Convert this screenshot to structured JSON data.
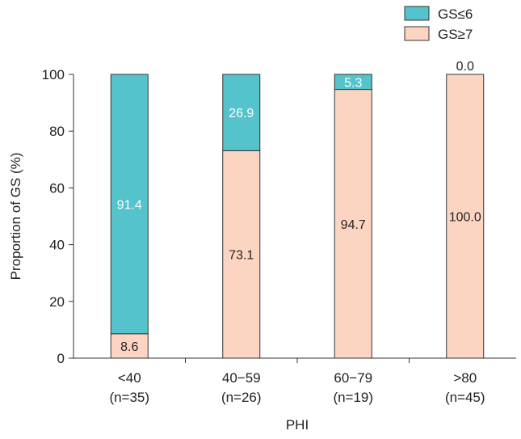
{
  "chart_data": {
    "type": "bar",
    "stacked": true,
    "categories": [
      "<40",
      "40−59",
      "60−79",
      ">80"
    ],
    "category_sublabels": [
      "(n=35)",
      "(n=26)",
      "(n=19)",
      "(n=45)"
    ],
    "series": [
      {
        "name": "GS≤6",
        "color": "#55c3cb",
        "values": [
          91.4,
          26.9,
          5.3,
          0.0
        ],
        "labels": [
          "91.4",
          "26.9",
          "5.3",
          "0.0"
        ],
        "label_color": "#ffffff"
      },
      {
        "name": "GS≥7",
        "color": "#fcd5c2",
        "values": [
          8.6,
          73.1,
          94.7,
          100.0
        ],
        "labels": [
          "8.6",
          "73.1",
          "94.7",
          "100.0"
        ],
        "label_color": "#222222"
      }
    ],
    "stack_order": [
      "GS≥7",
      "GS≤6"
    ],
    "xlabel": "PHI",
    "ylabel": "Proportion of GS (%)",
    "ylim": [
      0,
      100
    ],
    "yticks": [
      0,
      20,
      40,
      60,
      80,
      100
    ],
    "legend_position": "top-right",
    "grid": false
  }
}
